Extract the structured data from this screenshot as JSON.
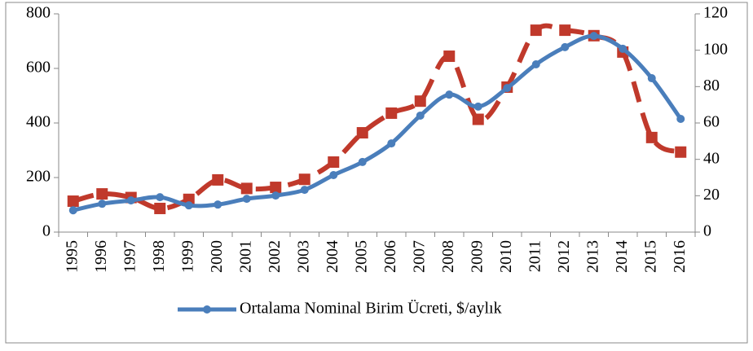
{
  "chart_data": {
    "type": "line",
    "categories": [
      "1995",
      "1996",
      "1997",
      "1998",
      "1999",
      "2000",
      "2001",
      "2002",
      "2003",
      "2004",
      "2005",
      "2006",
      "2007",
      "2008",
      "2009",
      "2010",
      "2011",
      "2012",
      "2013",
      "2014",
      "2015",
      "2016"
    ],
    "series": [
      {
        "name": "Ortalama Nominal Birim Ücreti, $/aylık",
        "color": "#4a7ebb",
        "smooth": true,
        "marker": "circle",
        "dashed": false,
        "values": [
          80,
          104,
          116,
          128,
          98,
          101,
          122,
          134,
          155,
          209,
          257,
          325,
          427,
          504,
          460,
          528,
          615,
          678,
          719,
          672,
          564,
          415
        ]
      },
      {
        "color": "#c0392b",
        "axis": "y2",
        "smooth": true,
        "marker": "square",
        "dashed": true,
        "values": [
          17,
          21,
          19,
          13,
          18,
          28.7,
          24,
          24.6,
          29,
          38.5,
          54.6,
          65.4,
          72,
          96.7,
          62,
          79.7,
          111,
          111,
          108,
          99,
          52,
          44
        ]
      }
    ],
    "ylim": [
      0,
      800
    ],
    "yticks": [
      0,
      200,
      400,
      600,
      800
    ],
    "y2lim": [
      0,
      120
    ],
    "y2ticks": [
      0,
      20,
      40,
      60,
      80,
      100,
      120
    ],
    "legend": "bottom"
  }
}
